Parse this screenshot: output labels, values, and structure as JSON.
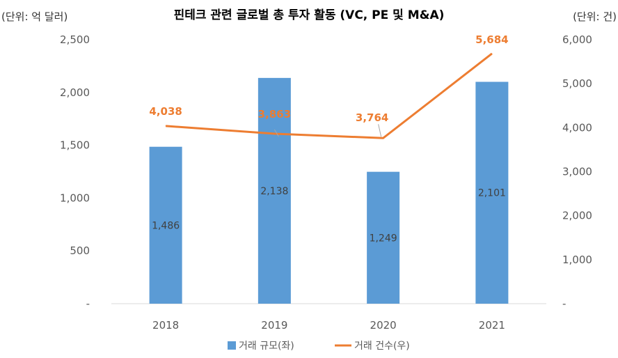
{
  "chart_data": {
    "type": "bar+line",
    "title": "핀테크 관련 글로벌 총 투자 활동 (VC, PE 및 M&A)",
    "left_unit": "(단위: 억 달러)",
    "right_unit": "(단위: 건)",
    "categories": [
      "2018",
      "2019",
      "2020",
      "2021"
    ],
    "y_left": {
      "min": 0,
      "max": 2500,
      "ticks": [
        "-",
        "500",
        "1,000",
        "1,500",
        "2,000",
        "2,500"
      ]
    },
    "y_right": {
      "min": 0,
      "max": 6000,
      "ticks": [
        "-",
        "1,000",
        "2,000",
        "3,000",
        "4,000",
        "5,000",
        "6,000"
      ]
    },
    "series": [
      {
        "name": "거래 규모(좌)",
        "kind": "bar",
        "axis": "left",
        "color": "#5b9bd5",
        "values": [
          1486,
          2138,
          1249,
          2101
        ],
        "labels": [
          "1,486",
          "2,138",
          "1,249",
          "2,101"
        ]
      },
      {
        "name": "거래 건수(우)",
        "kind": "line",
        "axis": "right",
        "color": "#ed7d31",
        "values": [
          4038,
          3863,
          3764,
          5684
        ],
        "labels": [
          "4,038",
          "3,863",
          "3,764",
          "5,684"
        ]
      }
    ],
    "grid": false,
    "legend": "bottom"
  }
}
